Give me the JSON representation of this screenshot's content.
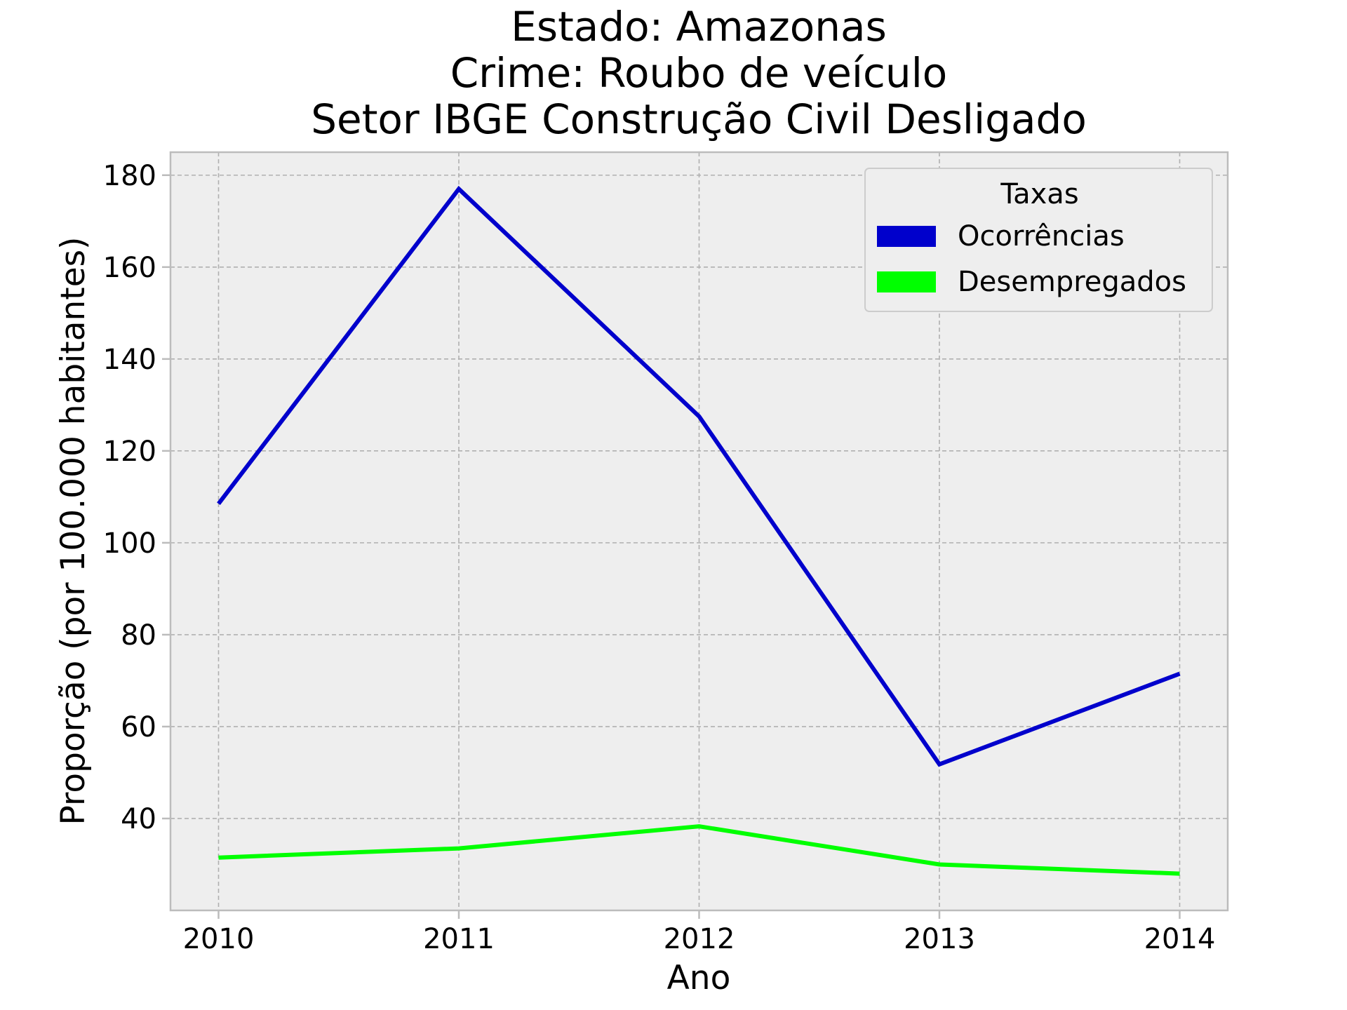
{
  "chart_data": {
    "type": "line",
    "title_lines": [
      "Estado: Amazonas",
      "Crime: Roubo de veículo",
      "Setor IBGE  Construção Civil   Desligado"
    ],
    "xlabel": "Ano",
    "ylabel": "Proporção (por 100.000 habitantes)",
    "x": [
      2010,
      2011,
      2012,
      2013,
      2014
    ],
    "x_tick_labels": [
      "2010",
      "2011",
      "2012",
      "2013",
      "2014"
    ],
    "xlim": [
      2009.8,
      2014.2
    ],
    "ylim": [
      20,
      185
    ],
    "y_ticks": [
      40,
      60,
      80,
      100,
      120,
      140,
      160,
      180
    ],
    "y_tick_labels": [
      "40",
      "60",
      "80",
      "100",
      "120",
      "140",
      "160",
      "180"
    ],
    "grid": true,
    "legend": {
      "title": "Taxas",
      "placement": "top-right"
    },
    "series": [
      {
        "name": "Ocorrências",
        "color": "#0000cc",
        "values": [
          108.5,
          177.0,
          127.5,
          51.8,
          71.5
        ]
      },
      {
        "name": "Desempregados",
        "color": "#00ff00",
        "values": [
          31.5,
          33.5,
          38.3,
          30.0,
          28.0
        ]
      }
    ],
    "colors": {
      "plot_background": "#eeeeee",
      "grid": "#b0b0b0",
      "axes_edge": "#bcbcbc"
    }
  }
}
